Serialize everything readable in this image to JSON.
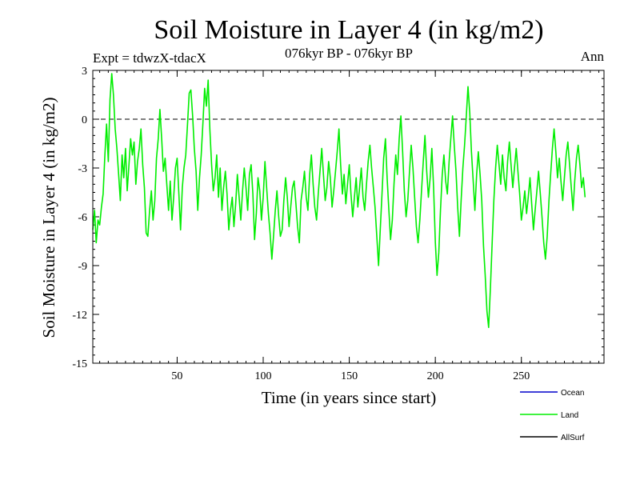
{
  "chart_data": {
    "type": "line",
    "title": "Soil Moisture in Layer 4 (in kg/m2)",
    "subtitle": "076kyr BP - 076kyr BP",
    "experiment_label": "Expt = tdwzX-tdacX",
    "period_label": "Ann",
    "xlabel": "Time (in years since start)",
    "ylabel": "Soil Moisture in Layer 4 (in kg/m2)",
    "xlim": [
      1,
      298
    ],
    "ylim": [
      -15,
      3
    ],
    "xticks": [
      50,
      100,
      150,
      200,
      250
    ],
    "xtick_labels": [
      "50",
      "100",
      "150",
      "200",
      "250"
    ],
    "yticks": [
      3,
      0,
      -3,
      -6,
      -9,
      -12,
      -15
    ],
    "ytick_labels": [
      "3",
      "0",
      "-3",
      "-6",
      "-9",
      "-12",
      "-15"
    ],
    "reference_line": 0,
    "legend": [
      {
        "name": "Ocean",
        "color": "#0000cc"
      },
      {
        "name": "Land",
        "color": "#00ee00"
      },
      {
        "name": "AllSurf",
        "color": "#000000"
      }
    ],
    "series": [
      {
        "name": "Land",
        "color": "#00ee00",
        "x_start": 1,
        "x_step": 1,
        "values": [
          -6.8,
          -5.6,
          -7.6,
          -6.2,
          -6.5,
          -5.4,
          -4.6,
          -2.2,
          -0.3,
          -2.6,
          1.2,
          2.8,
          1.5,
          -0.6,
          -1.8,
          -3.4,
          -5.0,
          -2.2,
          -3.6,
          -1.8,
          -4.4,
          -2.8,
          -1.2,
          -2.2,
          -1.4,
          -4.0,
          -2.6,
          -1.8,
          -0.6,
          -2.8,
          -4.2,
          -7.0,
          -7.2,
          -5.6,
          -4.4,
          -6.2,
          -5.0,
          -2.4,
          -1.2,
          0.6,
          -1.2,
          -3.2,
          -2.4,
          -4.0,
          -5.6,
          -3.8,
          -6.2,
          -4.8,
          -3.0,
          -2.4,
          -4.6,
          -6.8,
          -4.2,
          -3.0,
          -2.2,
          -0.4,
          1.6,
          1.8,
          0.2,
          -1.8,
          -3.2,
          -5.6,
          -3.6,
          -2.2,
          -0.2,
          1.9,
          0.8,
          2.4,
          -0.6,
          -2.8,
          -4.4,
          -3.6,
          -2.2,
          -4.8,
          -3.0,
          -5.6,
          -4.2,
          -3.2,
          -4.6,
          -6.8,
          -5.6,
          -4.8,
          -6.6,
          -5.2,
          -3.4,
          -4.8,
          -6.2,
          -4.4,
          -3.0,
          -4.2,
          -5.6,
          -3.4,
          -2.8,
          -4.6,
          -7.4,
          -5.8,
          -3.6,
          -4.4,
          -6.2,
          -4.8,
          -2.6,
          -4.2,
          -5.8,
          -7.0,
          -8.6,
          -7.2,
          -5.6,
          -4.4,
          -6.0,
          -7.2,
          -6.8,
          -5.0,
          -3.6,
          -4.8,
          -6.6,
          -5.4,
          -4.2,
          -3.8,
          -5.2,
          -6.6,
          -7.6,
          -5.0,
          -4.2,
          -3.2,
          -4.8,
          -5.6,
          -3.4,
          -2.2,
          -4.0,
          -5.4,
          -6.2,
          -4.6,
          -3.2,
          -1.8,
          -3.4,
          -5.0,
          -4.2,
          -2.6,
          -3.6,
          -5.4,
          -4.4,
          -3.2,
          -2.0,
          -0.6,
          -2.8,
          -4.6,
          -3.4,
          -5.2,
          -4.0,
          -2.8,
          -4.6,
          -6.0,
          -4.8,
          -3.6,
          -5.4,
          -4.2,
          -3.0,
          -4.8,
          -5.6,
          -4.0,
          -2.6,
          -1.6,
          -3.0,
          -4.2,
          -5.4,
          -7.2,
          -9.0,
          -6.8,
          -4.6,
          -2.4,
          -1.2,
          -3.6,
          -5.6,
          -7.4,
          -6.2,
          -4.0,
          -2.2,
          -3.4,
          -1.2,
          0.2,
          -2.0,
          -4.4,
          -6.0,
          -5.0,
          -3.2,
          -1.6,
          -3.0,
          -4.8,
          -6.6,
          -7.6,
          -6.2,
          -4.4,
          -2.6,
          -1.0,
          -3.2,
          -4.8,
          -3.6,
          -1.8,
          -4.2,
          -7.6,
          -9.6,
          -8.2,
          -5.6,
          -3.4,
          -2.2,
          -3.8,
          -4.6,
          -2.6,
          -1.2,
          0.2,
          -1.6,
          -3.2,
          -5.4,
          -7.2,
          -5.0,
          -3.0,
          -1.6,
          0.2,
          2.0,
          0.4,
          -2.0,
          -3.8,
          -5.6,
          -3.4,
          -2.0,
          -3.4,
          -5.0,
          -7.8,
          -9.6,
          -11.8,
          -12.8,
          -10.4,
          -7.6,
          -5.0,
          -3.0,
          -1.6,
          -2.8,
          -4.0,
          -2.2,
          -3.6,
          -4.4,
          -2.6,
          -1.4,
          -2.8,
          -4.2,
          -3.0,
          -1.8,
          -3.2,
          -4.6,
          -6.2,
          -5.4,
          -4.4,
          -5.8,
          -4.8,
          -3.6,
          -5.2,
          -6.8,
          -5.6,
          -4.4,
          -3.2,
          -4.6,
          -6.0,
          -7.6,
          -8.6,
          -7.2,
          -5.0,
          -3.4,
          -1.8,
          -0.6,
          -2.0,
          -3.6,
          -2.4,
          -3.8,
          -5.0,
          -3.6,
          -2.2,
          -1.4,
          -2.8,
          -4.2,
          -5.6,
          -3.8,
          -2.4,
          -1.6,
          -2.8,
          -4.2,
          -3.6,
          -4.8
        ]
      },
      {
        "name": "Ocean",
        "color": "#0000cc",
        "values": []
      },
      {
        "name": "AllSurf",
        "color": "#000000",
        "values": []
      }
    ]
  }
}
